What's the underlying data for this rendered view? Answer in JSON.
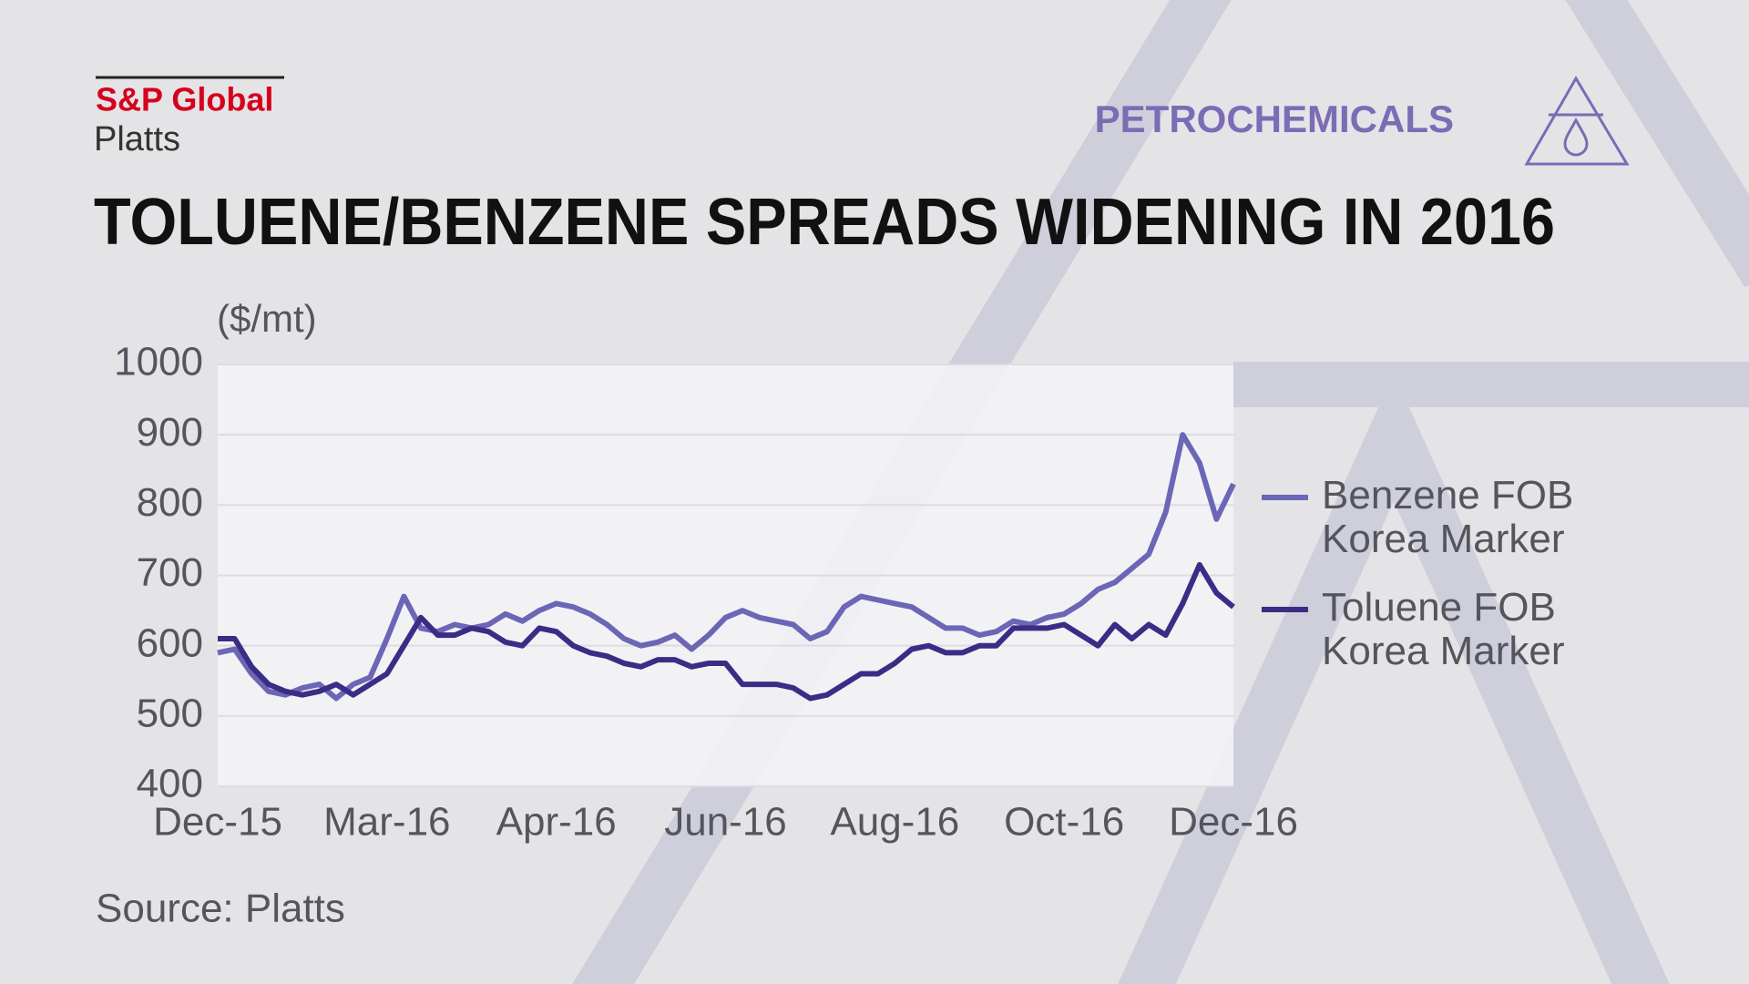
{
  "brand": {
    "name": "S&P Global",
    "sub": "Platts"
  },
  "section": "PETROCHEMICALS",
  "chart_data": {
    "type": "line",
    "title": "TOLUENE/BENZENE SPREADS WIDENING  IN 2016",
    "y_label": "($/mt)",
    "source": "Source: Platts",
    "categories": [
      "Dec-15",
      null,
      null,
      null,
      null,
      null,
      null,
      null,
      null,
      null,
      "Mar-16",
      null,
      null,
      null,
      null,
      null,
      null,
      null,
      null,
      null,
      "Apr-16",
      null,
      null,
      null,
      null,
      null,
      null,
      null,
      null,
      null,
      "Jun-16",
      null,
      null,
      null,
      null,
      null,
      null,
      null,
      null,
      null,
      "Aug-16",
      null,
      null,
      null,
      null,
      null,
      null,
      null,
      null,
      null,
      "Oct-16",
      null,
      null,
      null,
      null,
      null,
      null,
      null,
      null,
      null,
      "Dec-16"
    ],
    "ylim": [
      400,
      1000
    ],
    "yticks": [
      400,
      500,
      600,
      700,
      800,
      900,
      1000
    ],
    "grid": true,
    "legend": "right",
    "series": [
      {
        "name": "Benzene FOB Korea Marker",
        "color": "#6b66b5",
        "values": [
          590,
          595,
          560,
          535,
          530,
          540,
          545,
          525,
          545,
          555,
          610,
          670,
          625,
          620,
          630,
          625,
          630,
          645,
          635,
          650,
          660,
          655,
          645,
          630,
          610,
          600,
          605,
          615,
          595,
          615,
          640,
          650,
          640,
          635,
          630,
          610,
          620,
          655,
          670,
          665,
          660,
          655,
          640,
          625,
          625,
          615,
          620,
          635,
          630,
          640,
          645,
          660,
          680,
          690,
          710,
          730,
          790,
          900,
          860,
          780,
          830
        ]
      },
      {
        "name": "Toluene FOB Korea Marker",
        "color": "#3b2c85",
        "values": [
          610,
          610,
          570,
          545,
          535,
          530,
          535,
          545,
          530,
          545,
          560,
          600,
          640,
          615,
          615,
          625,
          620,
          605,
          600,
          625,
          620,
          600,
          590,
          585,
          575,
          570,
          580,
          580,
          570,
          575,
          575,
          545,
          545,
          545,
          540,
          525,
          530,
          545,
          560,
          560,
          575,
          595,
          600,
          590,
          590,
          600,
          600,
          625,
          625,
          625,
          630,
          615,
          600,
          630,
          610,
          630,
          615,
          660,
          715,
          675,
          655
        ]
      }
    ]
  }
}
